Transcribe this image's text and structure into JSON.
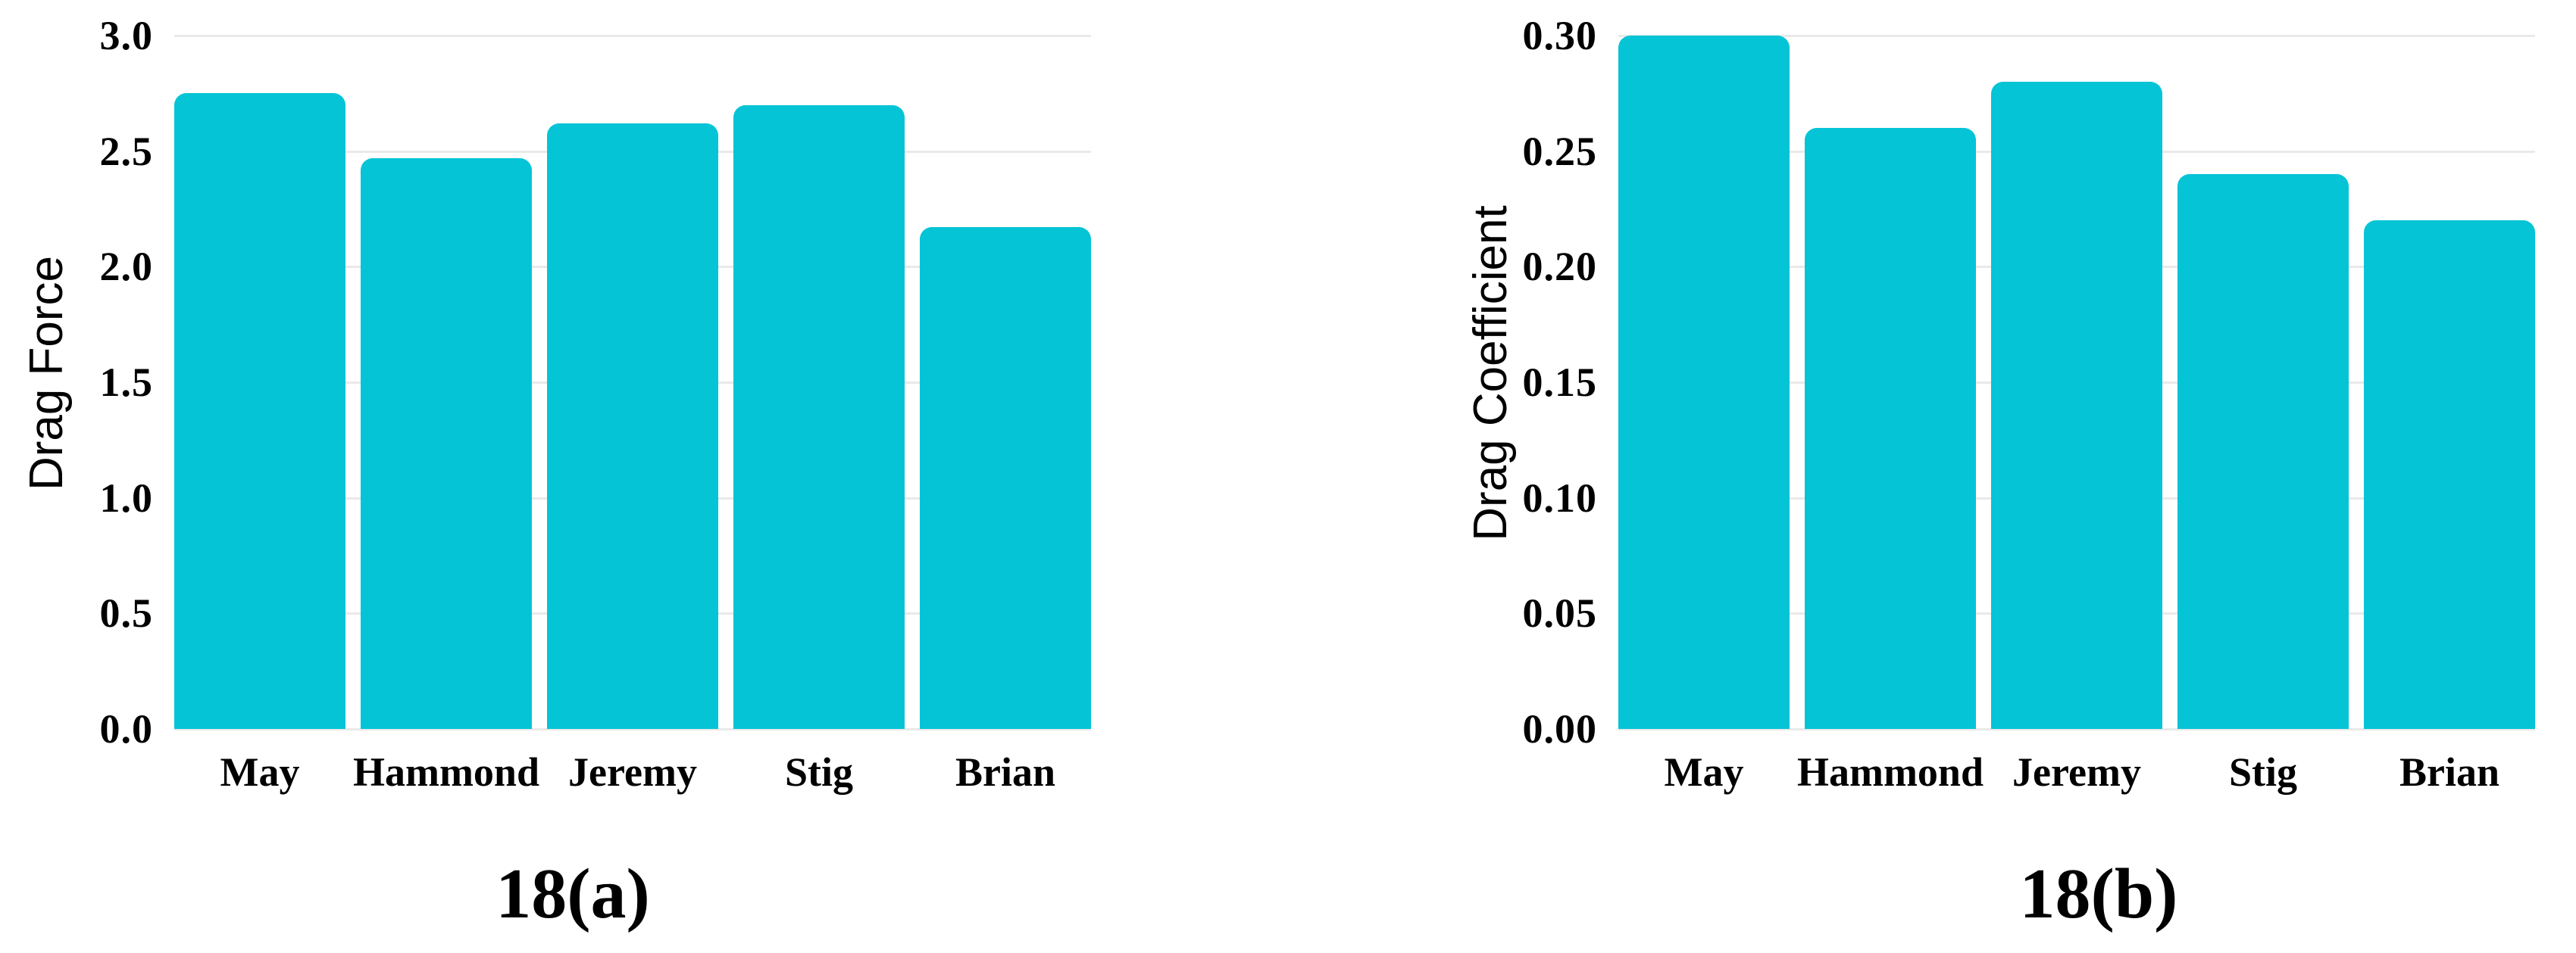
{
  "figure": {
    "captions": [
      "18(a)",
      "18(b)"
    ]
  },
  "colors": {
    "bar": "#05c4d6",
    "gridline": "#e9e9e9",
    "text": "#000000",
    "background": "#ffffff"
  },
  "chart_data": [
    {
      "type": "bar",
      "title": "",
      "xlabel": "",
      "ylabel": "Drag Force",
      "categories": [
        "May",
        "Hammond",
        "Jeremy",
        "Stig",
        "Brian"
      ],
      "values": [
        2.75,
        2.47,
        2.62,
        2.7,
        2.17
      ],
      "ylim": [
        0.0,
        3.0
      ],
      "ytick_step": 0.5,
      "ytick_labels": [
        "3.0",
        "2.5",
        "2.0",
        "1.5",
        "1.0",
        "0.5",
        "0.0"
      ],
      "grid": true,
      "legend": "none",
      "caption": "18(a)"
    },
    {
      "type": "bar",
      "title": "",
      "xlabel": "",
      "ylabel": "Drag Coefficient",
      "categories": [
        "May",
        "Hammond",
        "Jeremy",
        "Stig",
        "Brian"
      ],
      "values": [
        0.3,
        0.26,
        0.28,
        0.24,
        0.22
      ],
      "ylim": [
        0.0,
        0.3
      ],
      "ytick_step": 0.05,
      "ytick_labels": [
        "0.30",
        "0.25",
        "0.20",
        "0.15",
        "0.10",
        "0.05",
        "0.00"
      ],
      "grid": true,
      "legend": "none",
      "caption": "18(b)"
    }
  ]
}
